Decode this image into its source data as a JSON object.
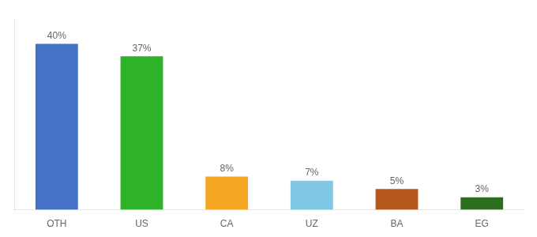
{
  "chart_data": {
    "type": "bar",
    "categories": [
      "OTH",
      "US",
      "CA",
      "UZ",
      "BA",
      "EG"
    ],
    "values": [
      40,
      37,
      8,
      7,
      5,
      3
    ],
    "value_labels": [
      "40%",
      "37%",
      "8%",
      "7%",
      "5%",
      "3%"
    ],
    "colors": [
      "#4472c4",
      "#2db228",
      "#f5a623",
      "#7ec8e3",
      "#b5571b",
      "#2d6e1e"
    ],
    "ylim": [
      0,
      46
    ],
    "grid": false,
    "data_labels": true,
    "tick_labels": "x"
  }
}
